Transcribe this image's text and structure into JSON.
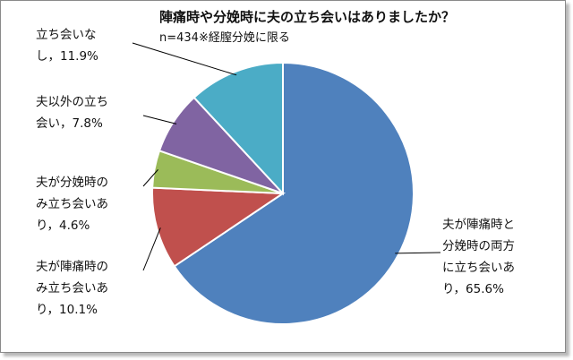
{
  "chart_data": {
    "type": "pie",
    "title": "陣痛時や分娩時に夫の立ち会いはありましたか？",
    "subtitle": "n=434※経膣分娩に限る",
    "slices": [
      {
        "lines": [
          "夫が陣痛時と",
          "分娩時の両方",
          "に立ち会いあ",
          "り，65.6%"
        ],
        "value": 65.6,
        "color": "#4f81bd"
      },
      {
        "lines": [
          "夫が陣痛時の",
          "み立ち会いあ",
          "り，10.1%"
        ],
        "value": 10.1,
        "color": "#c0504d"
      },
      {
        "lines": [
          "夫が分娩時の",
          "み立ち会いあ",
          "り，4.6%"
        ],
        "value": 4.6,
        "color": "#9bbb59"
      },
      {
        "lines": [
          "夫以外の立ち",
          "会い，7.8%"
        ],
        "value": 7.8,
        "color": "#8064a2"
      },
      {
        "lines": [
          "立ち会いな",
          "し，11.9%"
        ],
        "value": 11.9,
        "color": "#4bacc6"
      }
    ],
    "start_angle_deg": 0,
    "direction": "clockwise",
    "legend": "none"
  }
}
